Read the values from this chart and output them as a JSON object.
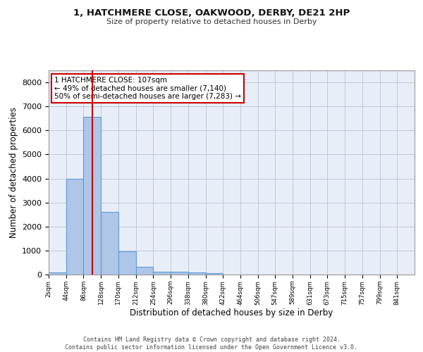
{
  "title1": "1, HATCHMERE CLOSE, OAKWOOD, DERBY, DE21 2HP",
  "title2": "Size of property relative to detached houses in Derby",
  "xlabel": "Distribution of detached houses by size in Derby",
  "ylabel": "Number of detached properties",
  "bar_edges": [
    2,
    44,
    86,
    128,
    170,
    212,
    254,
    296,
    338,
    380,
    422,
    464,
    506,
    547,
    589,
    631,
    673,
    715,
    757,
    799,
    841
  ],
  "bar_heights": [
    75,
    3980,
    6560,
    2620,
    960,
    310,
    130,
    120,
    90,
    60,
    0,
    0,
    0,
    0,
    0,
    0,
    0,
    0,
    0,
    0
  ],
  "bar_color": "#aec6e8",
  "bar_edge_color": "#5b9bd5",
  "bar_edge_linewidth": 0.8,
  "grid_color": "#c0c8d8",
  "background_color": "#e8eef8",
  "vline_x": 107,
  "vline_color": "#cc0000",
  "ylim": [
    0,
    8500
  ],
  "yticks": [
    0,
    1000,
    2000,
    3000,
    4000,
    5000,
    6000,
    7000,
    8000
  ],
  "annotation_text": "1 HATCHMERE CLOSE: 107sqm\n← 49% of detached houses are smaller (7,140)\n50% of semi-detached houses are larger (7,283) →",
  "annotation_box_color": "#ffffff",
  "annotation_box_edge": "#cc0000",
  "footer_text": "Contains HM Land Registry data © Crown copyright and database right 2024.\nContains public sector information licensed under the Open Government Licence v3.0.",
  "tick_labels": [
    "2sqm",
    "44sqm",
    "86sqm",
    "128sqm",
    "170sqm",
    "212sqm",
    "254sqm",
    "296sqm",
    "338sqm",
    "380sqm",
    "422sqm",
    "464sqm",
    "506sqm",
    "547sqm",
    "589sqm",
    "631sqm",
    "673sqm",
    "715sqm",
    "757sqm",
    "799sqm",
    "841sqm"
  ]
}
